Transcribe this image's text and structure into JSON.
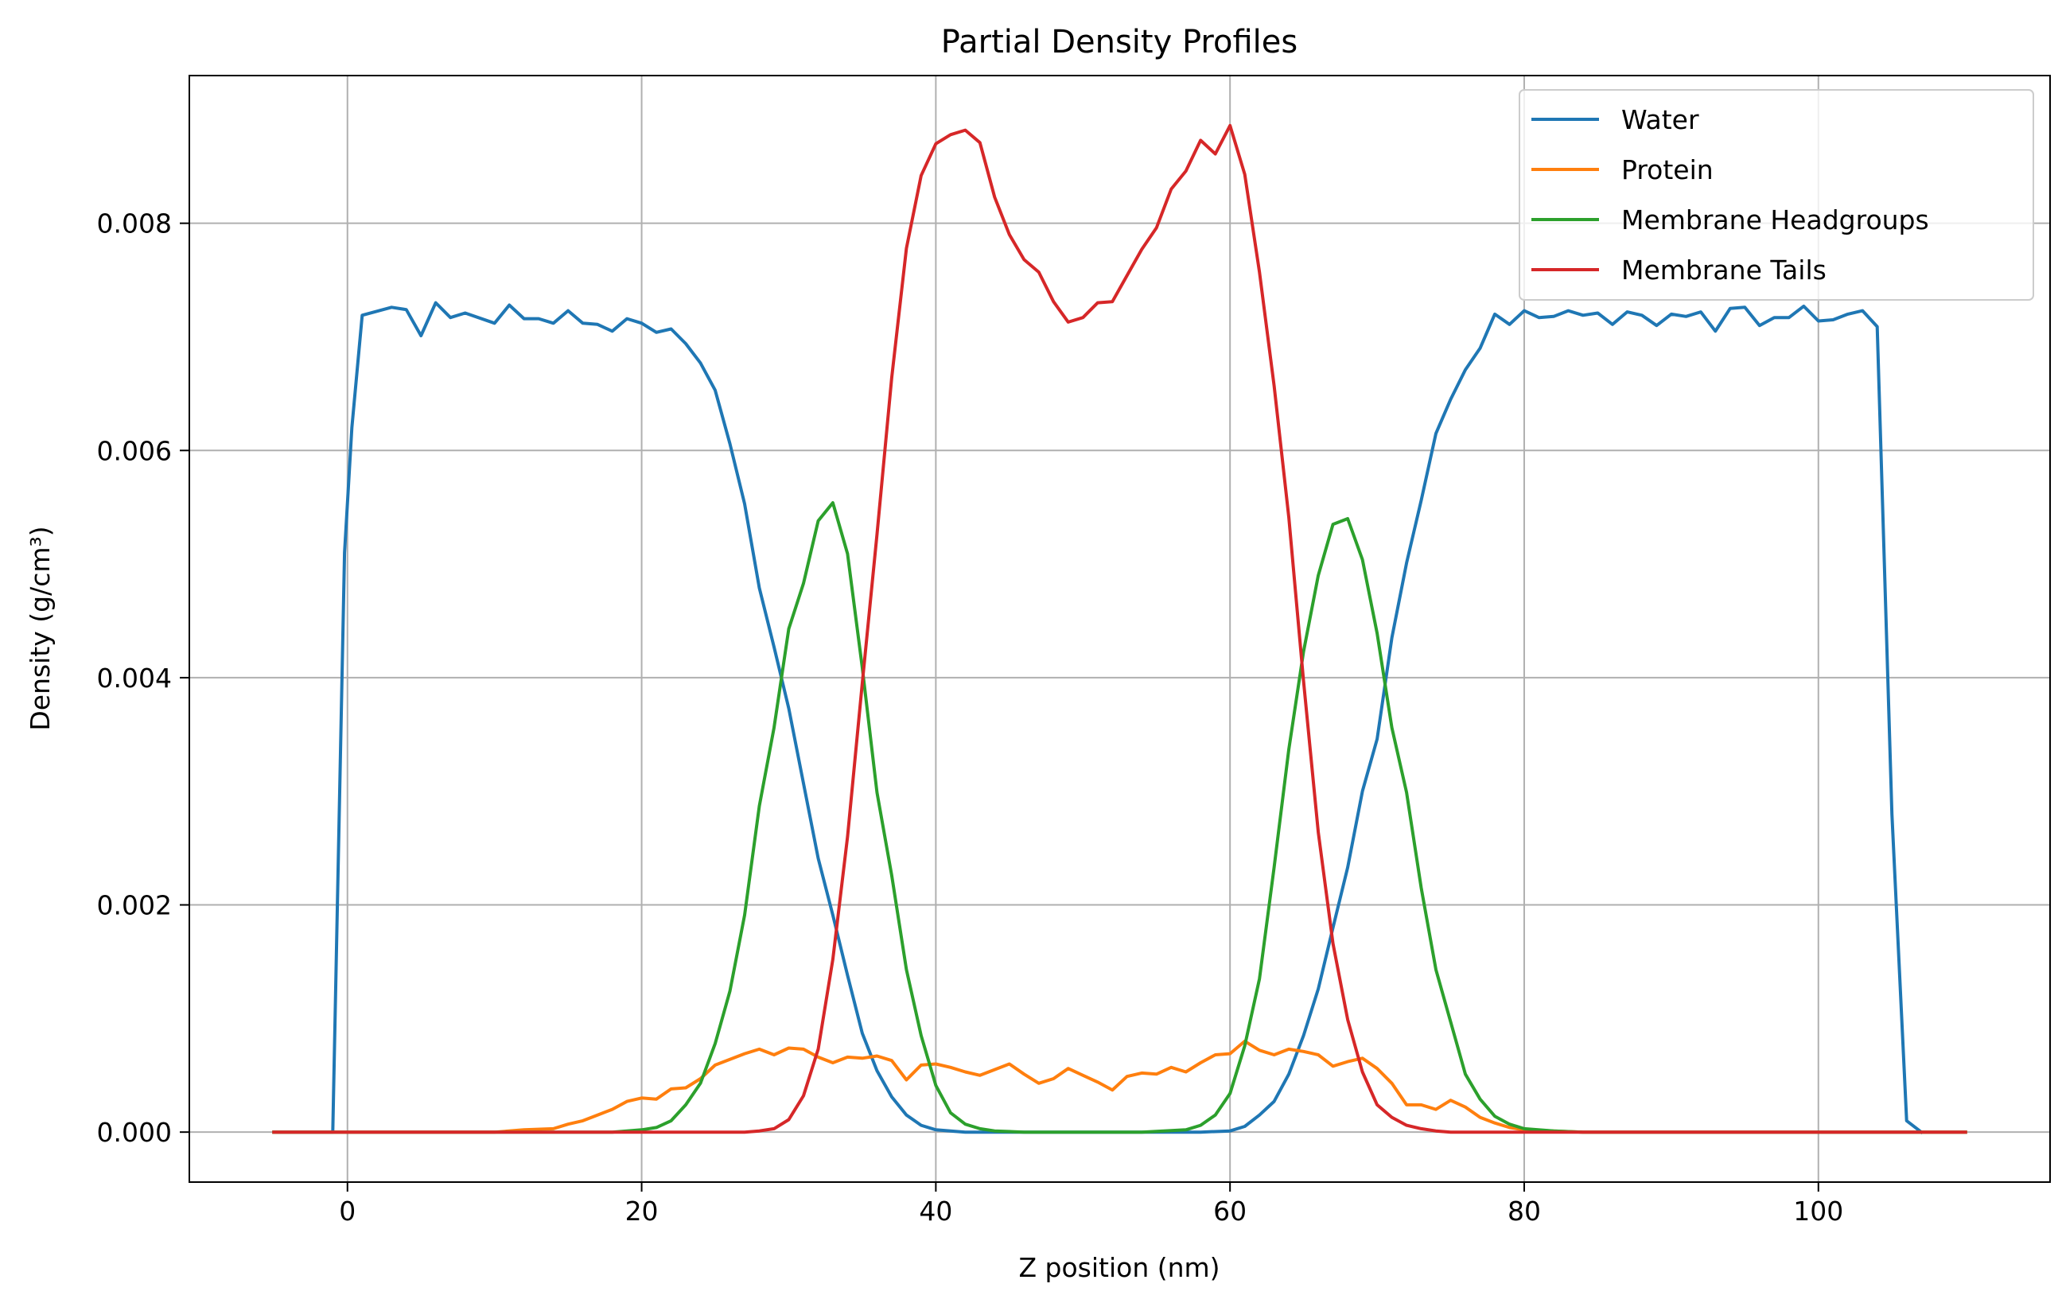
{
  "chart_data": {
    "type": "line",
    "title": "Partial Density Profiles",
    "xlabel": "Z position (nm)",
    "ylabel": "Density (g/cm³)",
    "xlim": [
      -10.75,
      115.75
    ],
    "ylim": [
      -0.00044,
      0.0093
    ],
    "xticks": [
      0,
      20,
      40,
      60,
      80,
      100
    ],
    "xtick_labels": [
      "0",
      "20",
      "40",
      "60",
      "80",
      "100"
    ],
    "yticks": [
      0,
      0.002,
      0.004,
      0.006,
      0.008
    ],
    "ytick_labels": [
      "0.000",
      "0.002",
      "0.004",
      "0.006",
      "0.008"
    ],
    "grid": true,
    "legend_position": "top-right",
    "series": [
      {
        "name": "Water",
        "color": "#1f77b4",
        "x": [
          -5,
          -1,
          -0.2,
          0.3,
          1,
          3,
          4,
          5,
          6,
          7,
          8,
          10,
          11,
          12,
          13,
          14,
          15,
          16,
          17,
          18,
          19,
          20,
          21,
          22,
          23,
          24,
          25,
          26,
          27,
          28,
          29,
          30,
          31,
          32,
          33,
          34,
          35,
          36,
          37,
          38,
          39,
          40,
          42,
          45,
          50,
          55,
          58,
          60,
          61,
          62,
          63,
          64,
          65,
          66,
          67,
          68,
          69,
          70,
          71,
          72,
          73,
          74,
          75,
          76,
          77,
          78,
          79,
          80,
          81,
          82,
          83,
          84,
          85,
          86,
          87,
          88,
          89,
          90,
          91,
          92,
          93,
          94,
          95,
          96,
          97,
          98,
          99,
          100,
          101,
          102,
          103,
          104,
          105,
          106,
          107
        ],
        "values": [
          0,
          0,
          0.0051,
          0.0062,
          0.00719,
          0.00726,
          0.00724,
          0.00701,
          0.0073,
          0.00717,
          0.00721,
          0.00712,
          0.00728,
          0.00716,
          0.00716,
          0.00712,
          0.00723,
          0.00712,
          0.00711,
          0.00705,
          0.00716,
          0.00712,
          0.00704,
          0.00707,
          0.00694,
          0.00677,
          0.00653,
          0.00606,
          0.00553,
          0.00479,
          0.00427,
          0.00373,
          0.00307,
          0.00241,
          0.00191,
          0.00138,
          0.00087,
          0.00054,
          0.00031,
          0.00015,
          6e-05,
          2e-05,
          0,
          0,
          0,
          0,
          0,
          1e-05,
          5e-05,
          0.00015,
          0.00027,
          0.00051,
          0.00085,
          0.00126,
          0.0018,
          0.00233,
          0.003,
          0.00346,
          0.00435,
          0.00501,
          0.00556,
          0.00615,
          0.00645,
          0.00671,
          0.0069,
          0.0072,
          0.00711,
          0.00723,
          0.00717,
          0.00718,
          0.00723,
          0.00719,
          0.00721,
          0.00711,
          0.00722,
          0.00719,
          0.0071,
          0.0072,
          0.00718,
          0.00722,
          0.00705,
          0.00725,
          0.00726,
          0.0071,
          0.00717,
          0.00717,
          0.00727,
          0.00714,
          0.00715,
          0.0072,
          0.00723,
          0.00709,
          0.0028,
          0.0001,
          0
        ]
      },
      {
        "name": "Protein",
        "color": "#ff7f0e",
        "x": [
          -5,
          10,
          12,
          14,
          15,
          16,
          17,
          18,
          19,
          20,
          21,
          22,
          23,
          24,
          25,
          26,
          27,
          28,
          29,
          30,
          31,
          32,
          33,
          34,
          35,
          36,
          37,
          38,
          39,
          40,
          41,
          42,
          43,
          44,
          45,
          46,
          47,
          48,
          49,
          50,
          51,
          52,
          53,
          54,
          55,
          56,
          57,
          58,
          59,
          60,
          61,
          62,
          63,
          64,
          65,
          66,
          67,
          68,
          69,
          70,
          71,
          72,
          73,
          74,
          75,
          76,
          77,
          78,
          79,
          80,
          82,
          84,
          110
        ],
        "values": [
          0,
          0,
          2e-05,
          3e-05,
          7e-05,
          0.0001,
          0.00015,
          0.0002,
          0.00027,
          0.0003,
          0.00029,
          0.00038,
          0.00039,
          0.00047,
          0.00059,
          0.00064,
          0.00069,
          0.00073,
          0.00068,
          0.00074,
          0.00073,
          0.00066,
          0.00061,
          0.00066,
          0.00065,
          0.00067,
          0.00063,
          0.00046,
          0.00059,
          0.0006,
          0.00057,
          0.00053,
          0.0005,
          0.00055,
          0.0006,
          0.00051,
          0.00043,
          0.00047,
          0.00056,
          0.0005,
          0.00044,
          0.00037,
          0.00049,
          0.00052,
          0.00051,
          0.00057,
          0.00053,
          0.00061,
          0.00068,
          0.00069,
          0.0008,
          0.00072,
          0.00068,
          0.00073,
          0.00071,
          0.00068,
          0.00058,
          0.00062,
          0.00065,
          0.00056,
          0.00043,
          0.00024,
          0.00024,
          0.0002,
          0.00028,
          0.00022,
          0.00013,
          8e-05,
          4e-05,
          2e-05,
          1e-05,
          0,
          0
        ]
      },
      {
        "name": "Membrane Headgroups",
        "color": "#2ca02c",
        "x": [
          -5,
          18,
          20,
          21,
          22,
          23,
          24,
          25,
          26,
          27,
          28,
          29,
          30,
          31,
          32,
          33,
          34,
          35,
          36,
          37,
          38,
          39,
          40,
          41,
          42,
          43,
          44,
          46,
          50,
          54,
          57,
          58,
          59,
          60,
          61,
          62,
          63,
          64,
          65,
          66,
          67,
          68,
          69,
          70,
          71,
          72,
          73,
          74,
          75,
          76,
          77,
          78,
          79,
          80,
          82,
          84,
          110
        ],
        "values": [
          0,
          0,
          2e-05,
          4e-05,
          0.0001,
          0.00024,
          0.00043,
          0.00078,
          0.00124,
          0.00191,
          0.00287,
          0.00356,
          0.00443,
          0.00483,
          0.00538,
          0.00554,
          0.00509,
          0.00409,
          0.00299,
          0.00226,
          0.00143,
          0.00085,
          0.00041,
          0.00017,
          7e-05,
          3e-05,
          1e-05,
          0,
          0,
          0,
          2e-05,
          6e-05,
          0.00015,
          0.00034,
          0.00076,
          0.00135,
          0.00233,
          0.00337,
          0.00423,
          0.0049,
          0.00535,
          0.0054,
          0.00504,
          0.00439,
          0.00356,
          0.00299,
          0.00215,
          0.00143,
          0.00097,
          0.00051,
          0.00029,
          0.00014,
          7e-05,
          3e-05,
          1e-05,
          0,
          0
        ]
      },
      {
        "name": "Membrane Tails",
        "color": "#d62728",
        "x": [
          -5,
          27,
          28,
          29,
          30,
          31,
          32,
          33,
          34,
          35,
          36,
          37,
          38,
          39,
          40,
          41,
          42,
          43,
          44,
          45,
          46,
          47,
          48,
          49,
          50,
          51,
          52,
          53,
          54,
          55,
          56,
          57,
          58,
          59,
          60,
          61,
          62,
          63,
          64,
          65,
          66,
          67,
          68,
          69,
          70,
          71,
          72,
          73,
          74,
          75,
          76,
          77,
          78,
          110
        ],
        "values": [
          0,
          0,
          1e-05,
          3e-05,
          0.00011,
          0.00032,
          0.00073,
          0.00152,
          0.0026,
          0.00395,
          0.00526,
          0.00664,
          0.00778,
          0.00842,
          0.0087,
          0.00878,
          0.00882,
          0.00871,
          0.00823,
          0.0079,
          0.00768,
          0.00757,
          0.00731,
          0.00713,
          0.00717,
          0.0073,
          0.00731,
          0.00754,
          0.00777,
          0.00796,
          0.0083,
          0.00846,
          0.00873,
          0.00861,
          0.00886,
          0.00843,
          0.00757,
          0.00657,
          0.00541,
          0.00397,
          0.00264,
          0.00166,
          0.00099,
          0.00053,
          0.00024,
          0.00013,
          6e-05,
          3e-05,
          1e-05,
          0,
          0,
          0,
          0,
          0
        ]
      }
    ]
  }
}
